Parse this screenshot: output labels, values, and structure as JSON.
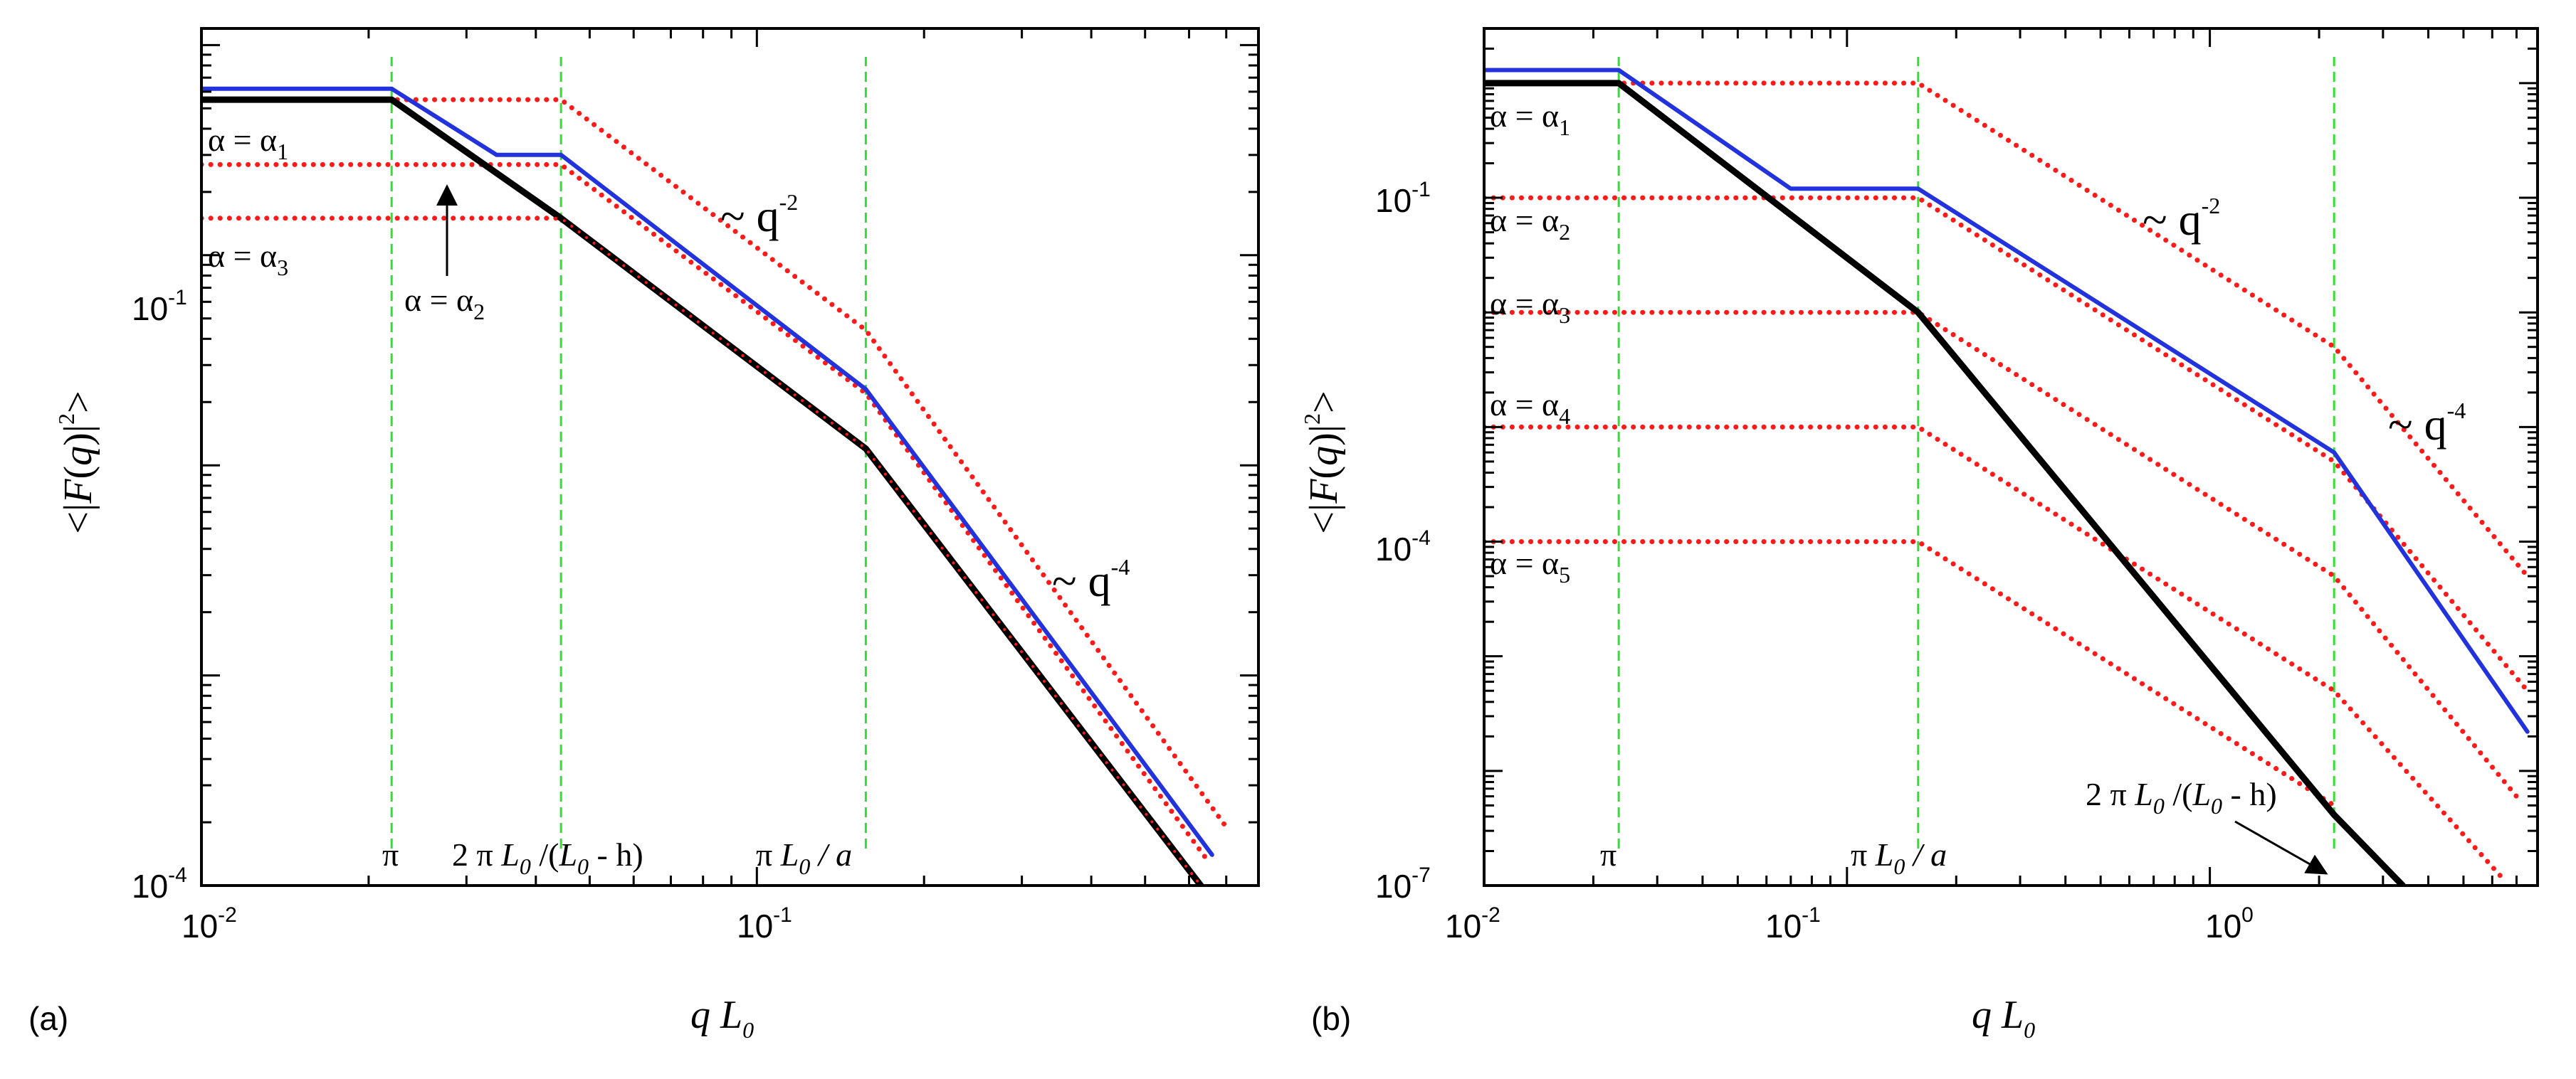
{
  "chart_data": [
    {
      "panel": "(a)",
      "type": "line",
      "xscale": "log",
      "yscale": "log",
      "xlim": [
        0.01,
        0.8
      ],
      "ylim": [
        0.0001,
        1.2
      ],
      "xlabel": "q L0",
      "ylabel": "<|F(q)|^2>",
      "xticks": [
        {
          "value": 0.01,
          "label": "10",
          "exp": "-2"
        },
        {
          "value": 0.1,
          "label": "10",
          "exp": "-1"
        }
      ],
      "yticks": [
        {
          "value": 0.1,
          "label": "10",
          "exp": "-1"
        },
        {
          "value": 0.0001,
          "label": "10",
          "exp": "-4"
        }
      ],
      "series": [
        {
          "name": "dotted alpha1",
          "color": "#ff1a1a",
          "style": "dotted",
          "x": [
            0.01,
            0.0444,
            0.1571,
            0.7
          ],
          "y": [
            0.55,
            0.55,
            0.044,
            0.00019
          ]
        },
        {
          "name": "dotted alpha2",
          "color": "#ff1a1a",
          "style": "dotted",
          "x": [
            0.01,
            0.0444,
            0.1571,
            0.65
          ],
          "y": [
            0.27,
            0.27,
            0.022,
            0.00013
          ]
        },
        {
          "name": "dotted alpha3",
          "color": "#ff1a1a",
          "style": "dotted",
          "x": [
            0.01,
            0.0444,
            0.1571,
            0.63
          ],
          "y": [
            0.15,
            0.15,
            0.012,
            0.0001
          ]
        },
        {
          "name": "blue envelope",
          "color": "#2233dd",
          "style": "solid",
          "x": [
            0.01,
            0.022,
            0.034,
            0.0444,
            0.1571,
            0.66
          ],
          "y": [
            0.62,
            0.62,
            0.3,
            0.3,
            0.023,
            0.00014
          ]
        },
        {
          "name": "black total",
          "color": "#000000",
          "style": "solid",
          "x": [
            0.01,
            0.022,
            0.0444,
            0.1571,
            0.63
          ],
          "y": [
            0.55,
            0.55,
            0.15,
            0.012,
            0.0001
          ]
        }
      ],
      "vlines": [
        {
          "x": 0.022,
          "label": "π"
        },
        {
          "x": 0.0444,
          "label": "2 π L0 /(L0 - h)"
        },
        {
          "x": 0.1571,
          "label": "π L0 / a"
        }
      ],
      "annotations": [
        "α = α1",
        "α = α3",
        "α = α2",
        "~ q-2",
        "~ q-4"
      ]
    },
    {
      "panel": "(b)",
      "type": "line",
      "xscale": "log",
      "yscale": "log",
      "xlim": [
        0.01,
        8
      ],
      "ylim": [
        1e-07,
        3
      ],
      "xlabel": "q L0",
      "ylabel": "<|F(q)|^2>",
      "xticks": [
        {
          "value": 0.01,
          "label": "10",
          "exp": "-2"
        },
        {
          "value": 0.1,
          "label": "10",
          "exp": "-1"
        },
        {
          "value": 1,
          "label": "10",
          "exp": "0"
        }
      ],
      "yticks": [
        {
          "value": 0.1,
          "label": "10",
          "exp": "-1"
        },
        {
          "value": 0.0001,
          "label": "10",
          "exp": "-4"
        },
        {
          "value": 1e-07,
          "label": "10",
          "exp": "-7"
        }
      ],
      "series": [
        {
          "name": "dotted alpha1",
          "color": "#ff1a1a",
          "style": "dotted",
          "x": [
            0.01,
            0.1571,
            2.2,
            7.5
          ],
          "y": [
            1.0,
            1.0,
            0.005,
            5e-05
          ]
        },
        {
          "name": "dotted alpha2",
          "color": "#ff1a1a",
          "style": "dotted",
          "x": [
            0.01,
            0.1571,
            2.2,
            7.5
          ],
          "y": [
            0.1,
            0.1,
            0.0005,
            5e-06
          ]
        },
        {
          "name": "dotted alpha3",
          "color": "#ff1a1a",
          "style": "dotted",
          "x": [
            0.01,
            0.1571,
            2.2,
            7.0
          ],
          "y": [
            0.01,
            0.01,
            5e-05,
            6e-07
          ]
        },
        {
          "name": "dotted alpha4",
          "color": "#ff1a1a",
          "style": "dotted",
          "x": [
            0.01,
            0.1571,
            2.2,
            6.5
          ],
          "y": [
            0.001,
            0.001,
            5e-06,
            1.1e-07
          ]
        },
        {
          "name": "dotted alpha5",
          "color": "#ff1a1a",
          "style": "dotted",
          "x": [
            0.01,
            0.1571,
            2.2
          ],
          "y": [
            0.0001,
            0.0001,
            5e-07
          ]
        },
        {
          "name": "blue envelope",
          "color": "#2233dd",
          "style": "solid",
          "x": [
            0.01,
            0.0235,
            0.07,
            0.1571,
            2.2,
            7.5
          ],
          "y": [
            1.3,
            1.3,
            0.12,
            0.12,
            0.0006,
            2.2e-06
          ]
        },
        {
          "name": "black total",
          "color": "#000000",
          "style": "solid",
          "x": [
            0.01,
            0.0235,
            0.1571,
            2.2,
            3.4
          ],
          "y": [
            1.0,
            1.0,
            0.01,
            4.14e-07,
            1e-07
          ]
        }
      ],
      "vlines": [
        {
          "x": 0.0235,
          "label": "π"
        },
        {
          "x": 0.1571,
          "label": "π L0 / a"
        },
        {
          "x": 2.2,
          "label": "2 π L0 /(L0 - h)"
        }
      ],
      "annotations": [
        "α = α1",
        "α = α2",
        "α = α3",
        "α = α4",
        "α = α5",
        "~ q-2",
        "~ q-4"
      ]
    }
  ],
  "labels": {
    "panel_a": "(a)",
    "panel_b": "(b)",
    "alpha_prefix": "α = α",
    "tilde_q": "~ q",
    "exp_m2": "-2",
    "exp_m4": "-4",
    "pi": "π",
    "x_q": "q",
    "x_L": "L",
    "x_sub0": "0",
    "y_open": "<|",
    "y_F": "F",
    "y_paren_open": "(",
    "y_q": "q",
    "y_paren_close": ")|",
    "y_sq": "2",
    "y_close": ">",
    "lbl_twopi": "2 π",
    "lbl_L": "L",
    "lbl_sub0": "0",
    "lbl_slash_open": " /(",
    "lbl_minus_h": " - h)",
    "lbl_pi": "π",
    "lbl_slash_a": " / a",
    "idx1": "1",
    "idx2": "2",
    "idx3": "3",
    "idx4": "4",
    "idx5": "5"
  }
}
